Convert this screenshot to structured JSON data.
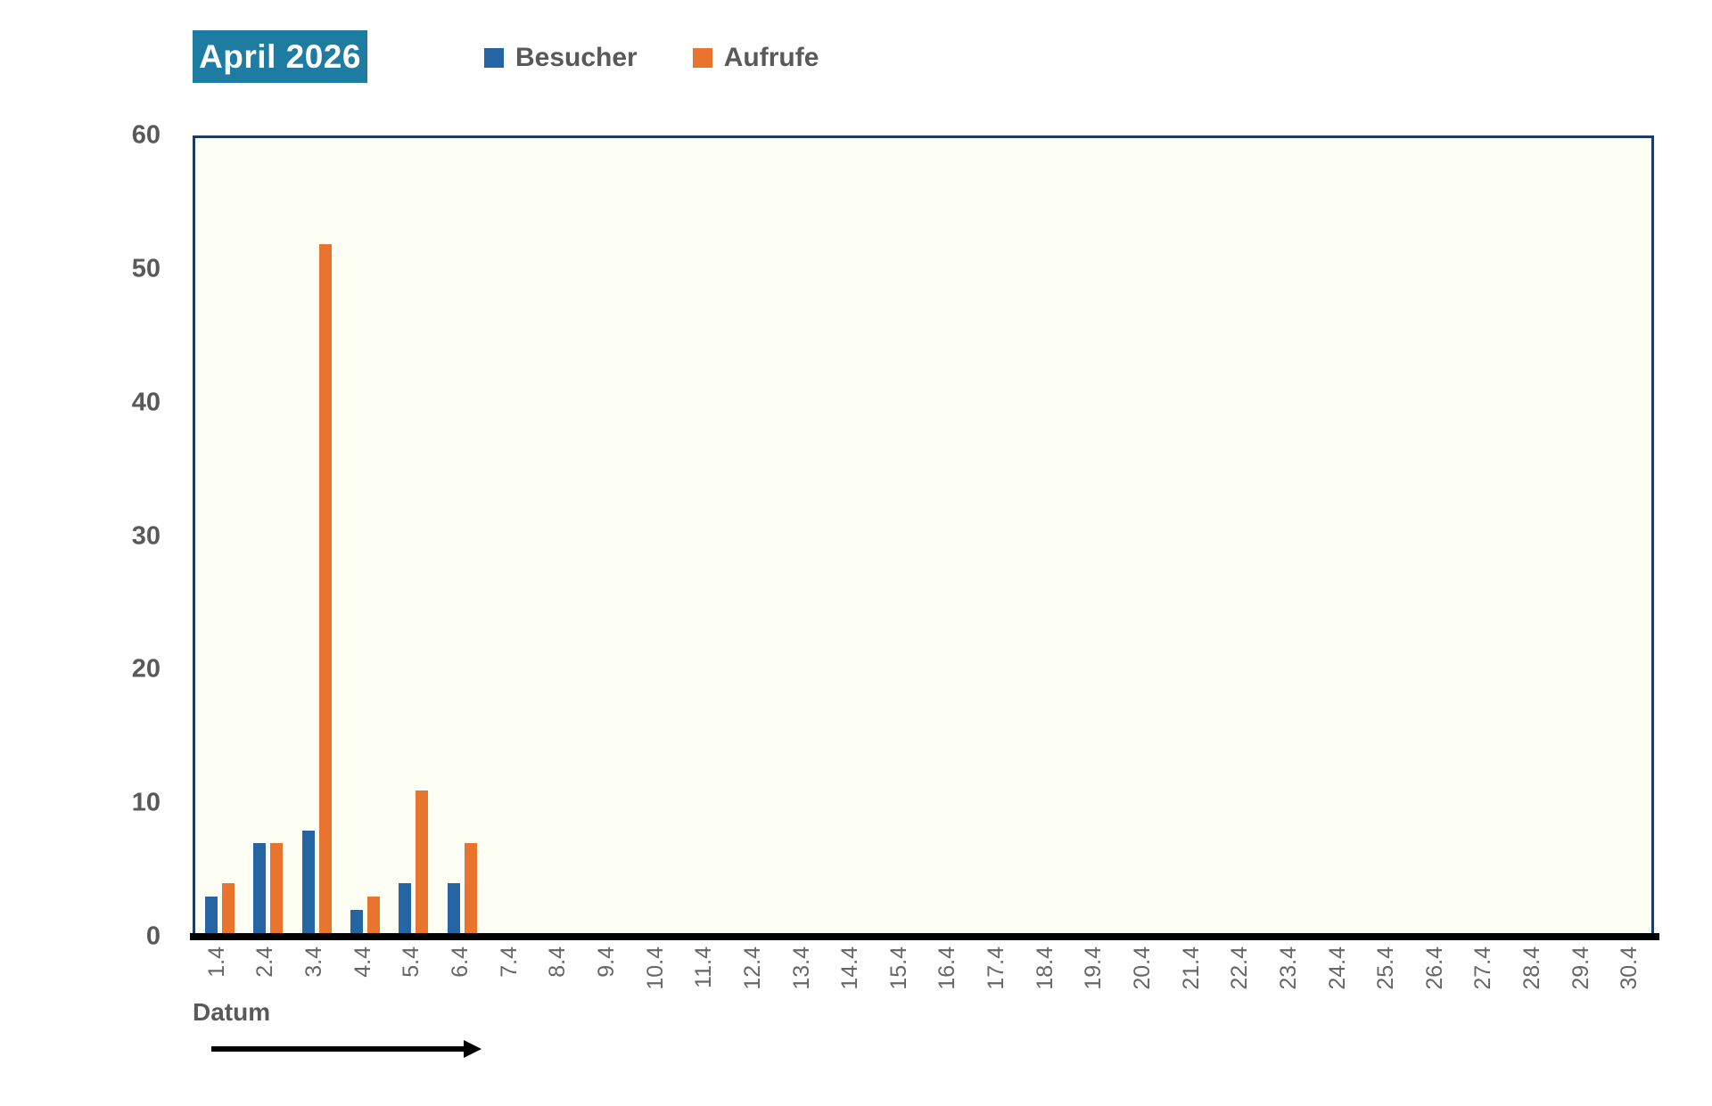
{
  "title": {
    "label": "April 2026",
    "bg_color": "#1E7BA2",
    "text_color": "#ffffff"
  },
  "legend": {
    "items": [
      {
        "label": "Besucher",
        "color": "#2565A3"
      },
      {
        "label": "Aufrufe",
        "color": "#E8742E"
      }
    ]
  },
  "x_axis": {
    "title": "Datum"
  },
  "chart_data": {
    "type": "bar",
    "title": "April 2026",
    "categories": [
      "1.4",
      "2.4",
      "3.4",
      "4.4",
      "5.4",
      "6.4",
      "7.4",
      "8.4",
      "9.4",
      "10.4",
      "11.4",
      "12.4",
      "13.4",
      "14.4",
      "15.4",
      "16.4",
      "17.4",
      "18.4",
      "19.4",
      "20.4",
      "21.4",
      "22.4",
      "23.4",
      "24.4",
      "25.4",
      "26.4",
      "27.4",
      "28.4",
      "29.4",
      "30.4"
    ],
    "series": [
      {
        "name": "Besucher",
        "color": "#2565A3",
        "values": [
          3,
          7,
          8,
          2,
          4,
          4,
          0,
          0,
          0,
          0,
          0,
          0,
          0,
          0,
          0,
          0,
          0,
          0,
          0,
          0,
          0,
          0,
          0,
          0,
          0,
          0,
          0,
          0,
          0,
          0
        ]
      },
      {
        "name": "Aufrufe",
        "color": "#E8742E",
        "values": [
          4,
          7,
          52,
          3,
          11,
          7,
          0,
          0,
          0,
          0,
          0,
          0,
          0,
          0,
          0,
          0,
          0,
          0,
          0,
          0,
          0,
          0,
          0,
          0,
          0,
          0,
          0,
          0,
          0,
          0
        ]
      }
    ],
    "xlabel": "Datum",
    "ylabel": "",
    "ylim": [
      0,
      60
    ],
    "yticks": [
      0,
      10,
      20,
      30,
      40,
      50,
      60
    ],
    "grid": false,
    "legend_position": "top",
    "plot_bg": "#FDFFF4",
    "border_color": "#1D3C61",
    "axis_line_color": "#000000"
  }
}
